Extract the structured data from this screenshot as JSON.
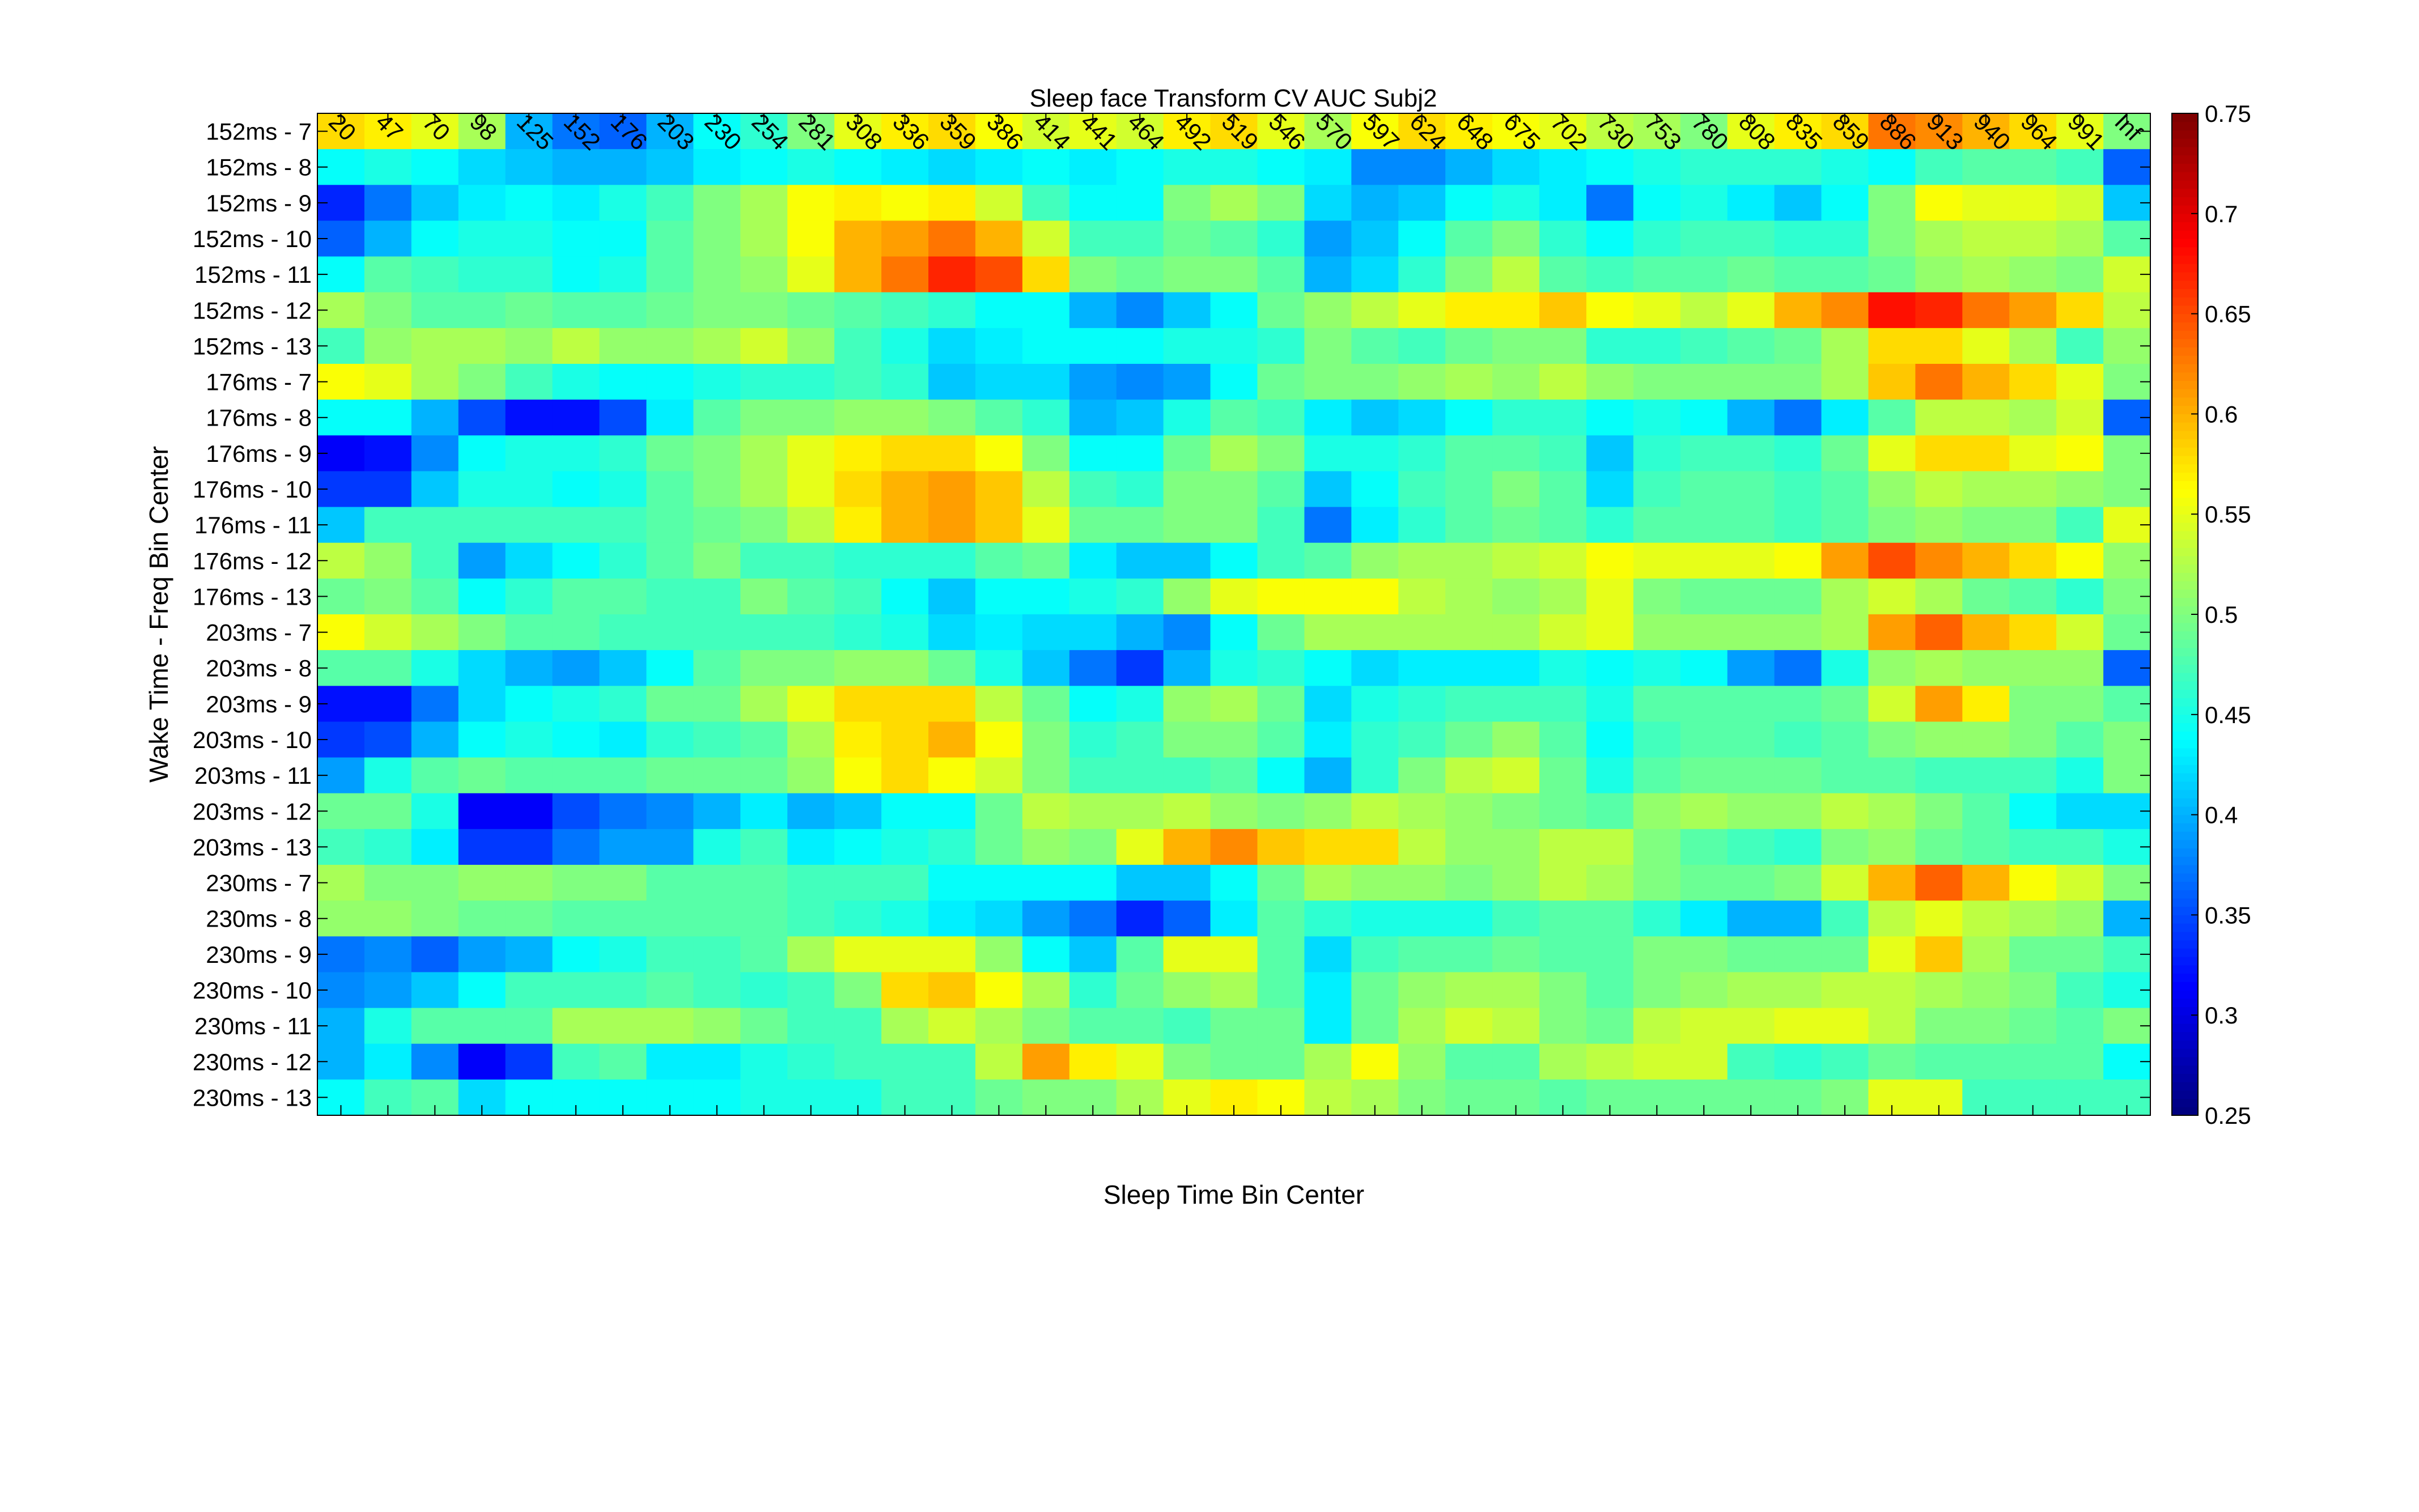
{
  "chart_data": {
    "type": "heatmap",
    "title": "Sleep face Transform CV AUC Subj2",
    "xlabel": "Sleep Time Bin Center",
    "ylabel": "Wake Time - Freq Bin Center",
    "x_ticks": [
      "20",
      "47",
      "70",
      "98",
      "125",
      "152",
      "176",
      "203",
      "230",
      "254",
      "281",
      "308",
      "336",
      "359",
      "386",
      "414",
      "441",
      "464",
      "492",
      "519",
      "546",
      "570",
      "597",
      "624",
      "648",
      "675",
      "702",
      "730",
      "753",
      "780",
      "808",
      "835",
      "859",
      "886",
      "913",
      "940",
      "964",
      "991",
      "Inf"
    ],
    "y_ticks": [
      "152ms - 7",
      "152ms - 8",
      "152ms - 9",
      "152ms - 10",
      "152ms - 11",
      "152ms - 12",
      "152ms - 13",
      "176ms - 7",
      "176ms - 8",
      "176ms - 9",
      "176ms - 10",
      "176ms - 11",
      "176ms - 12",
      "176ms - 13",
      "203ms - 7",
      "203ms - 8",
      "203ms - 9",
      "203ms - 10",
      "203ms - 11",
      "203ms - 12",
      "203ms - 13",
      "230ms - 7",
      "230ms - 8",
      "230ms - 9",
      "230ms - 10",
      "230ms - 11",
      "230ms - 12",
      "230ms - 13"
    ],
    "colormap": "jet",
    "clim": [
      0.25,
      0.75
    ],
    "colorbar_ticks": [
      "0.25",
      "0.3",
      "0.35",
      "0.4",
      "0.45",
      "0.5",
      "0.55",
      "0.6",
      "0.65",
      "0.7",
      "0.75"
    ],
    "values": [
      [
        0.58,
        0.57,
        0.55,
        0.52,
        0.4,
        0.37,
        0.36,
        0.4,
        0.44,
        0.46,
        0.5,
        0.55,
        0.57,
        0.58,
        0.56,
        0.54,
        0.55,
        0.54,
        0.57,
        0.58,
        0.55,
        0.52,
        0.56,
        0.58,
        0.57,
        0.56,
        0.55,
        0.53,
        0.52,
        0.5,
        0.55,
        0.57,
        0.58,
        0.63,
        0.62,
        0.6,
        0.58,
        0.55,
        0.5
      ],
      [
        0.44,
        0.45,
        0.44,
        0.42,
        0.41,
        0.4,
        0.4,
        0.41,
        0.43,
        0.44,
        0.45,
        0.44,
        0.43,
        0.42,
        0.43,
        0.44,
        0.43,
        0.44,
        0.45,
        0.45,
        0.44,
        0.43,
        0.38,
        0.38,
        0.4,
        0.42,
        0.43,
        0.44,
        0.45,
        0.46,
        0.46,
        0.46,
        0.45,
        0.44,
        0.47,
        0.48,
        0.48,
        0.47,
        0.36
      ],
      [
        0.33,
        0.37,
        0.41,
        0.43,
        0.44,
        0.43,
        0.45,
        0.47,
        0.5,
        0.52,
        0.56,
        0.57,
        0.56,
        0.57,
        0.54,
        0.47,
        0.44,
        0.44,
        0.5,
        0.52,
        0.5,
        0.42,
        0.4,
        0.41,
        0.44,
        0.45,
        0.43,
        0.37,
        0.44,
        0.45,
        0.43,
        0.41,
        0.44,
        0.5,
        0.56,
        0.55,
        0.55,
        0.54,
        0.41
      ],
      [
        0.36,
        0.4,
        0.44,
        0.45,
        0.45,
        0.44,
        0.44,
        0.48,
        0.5,
        0.52,
        0.56,
        0.6,
        0.61,
        0.63,
        0.6,
        0.54,
        0.47,
        0.47,
        0.49,
        0.48,
        0.46,
        0.39,
        0.41,
        0.44,
        0.48,
        0.5,
        0.46,
        0.44,
        0.46,
        0.47,
        0.47,
        0.46,
        0.46,
        0.5,
        0.52,
        0.53,
        0.53,
        0.52,
        0.48
      ],
      [
        0.44,
        0.48,
        0.47,
        0.46,
        0.46,
        0.44,
        0.45,
        0.48,
        0.5,
        0.51,
        0.55,
        0.6,
        0.63,
        0.67,
        0.65,
        0.58,
        0.5,
        0.49,
        0.5,
        0.5,
        0.48,
        0.4,
        0.42,
        0.46,
        0.5,
        0.53,
        0.48,
        0.47,
        0.48,
        0.48,
        0.49,
        0.48,
        0.48,
        0.49,
        0.51,
        0.52,
        0.51,
        0.5,
        0.54
      ],
      [
        0.52,
        0.5,
        0.48,
        0.48,
        0.49,
        0.48,
        0.48,
        0.49,
        0.5,
        0.5,
        0.49,
        0.48,
        0.47,
        0.46,
        0.44,
        0.44,
        0.4,
        0.38,
        0.41,
        0.44,
        0.49,
        0.51,
        0.53,
        0.55,
        0.57,
        0.57,
        0.59,
        0.56,
        0.55,
        0.53,
        0.55,
        0.6,
        0.62,
        0.68,
        0.67,
        0.63,
        0.61,
        0.58,
        0.53
      ],
      [
        0.47,
        0.51,
        0.52,
        0.52,
        0.51,
        0.53,
        0.51,
        0.51,
        0.52,
        0.54,
        0.51,
        0.47,
        0.45,
        0.42,
        0.43,
        0.44,
        0.44,
        0.44,
        0.45,
        0.45,
        0.46,
        0.5,
        0.48,
        0.47,
        0.49,
        0.5,
        0.5,
        0.46,
        0.46,
        0.47,
        0.48,
        0.49,
        0.52,
        0.58,
        0.58,
        0.55,
        0.52,
        0.47,
        0.51
      ],
      [
        0.56,
        0.55,
        0.52,
        0.5,
        0.47,
        0.45,
        0.44,
        0.44,
        0.45,
        0.46,
        0.46,
        0.47,
        0.46,
        0.41,
        0.42,
        0.42,
        0.39,
        0.38,
        0.39,
        0.44,
        0.49,
        0.5,
        0.5,
        0.51,
        0.52,
        0.51,
        0.53,
        0.51,
        0.5,
        0.5,
        0.5,
        0.5,
        0.52,
        0.59,
        0.63,
        0.6,
        0.58,
        0.55,
        0.5
      ],
      [
        0.44,
        0.44,
        0.4,
        0.35,
        0.32,
        0.32,
        0.35,
        0.43,
        0.48,
        0.5,
        0.5,
        0.51,
        0.51,
        0.5,
        0.48,
        0.46,
        0.4,
        0.41,
        0.45,
        0.48,
        0.47,
        0.43,
        0.41,
        0.42,
        0.44,
        0.46,
        0.46,
        0.44,
        0.45,
        0.44,
        0.4,
        0.37,
        0.43,
        0.48,
        0.53,
        0.53,
        0.52,
        0.54,
        0.36
      ],
      [
        0.31,
        0.32,
        0.38,
        0.44,
        0.45,
        0.45,
        0.46,
        0.49,
        0.5,
        0.52,
        0.55,
        0.57,
        0.58,
        0.58,
        0.56,
        0.5,
        0.44,
        0.44,
        0.49,
        0.52,
        0.5,
        0.45,
        0.45,
        0.46,
        0.48,
        0.48,
        0.47,
        0.41,
        0.46,
        0.47,
        0.47,
        0.46,
        0.49,
        0.55,
        0.58,
        0.58,
        0.55,
        0.56,
        0.5
      ],
      [
        0.34,
        0.34,
        0.41,
        0.45,
        0.45,
        0.44,
        0.45,
        0.48,
        0.5,
        0.52,
        0.55,
        0.58,
        0.6,
        0.61,
        0.59,
        0.53,
        0.47,
        0.46,
        0.5,
        0.5,
        0.48,
        0.41,
        0.44,
        0.47,
        0.48,
        0.5,
        0.48,
        0.42,
        0.47,
        0.48,
        0.48,
        0.47,
        0.48,
        0.51,
        0.53,
        0.52,
        0.52,
        0.51,
        0.5
      ],
      [
        0.41,
        0.47,
        0.47,
        0.47,
        0.47,
        0.47,
        0.47,
        0.48,
        0.49,
        0.5,
        0.53,
        0.57,
        0.6,
        0.61,
        0.59,
        0.55,
        0.49,
        0.49,
        0.5,
        0.5,
        0.47,
        0.37,
        0.43,
        0.46,
        0.48,
        0.49,
        0.48,
        0.46,
        0.48,
        0.48,
        0.48,
        0.47,
        0.48,
        0.5,
        0.51,
        0.5,
        0.5,
        0.47,
        0.55
      ],
      [
        0.53,
        0.51,
        0.47,
        0.39,
        0.42,
        0.44,
        0.46,
        0.48,
        0.5,
        0.47,
        0.47,
        0.46,
        0.46,
        0.46,
        0.48,
        0.49,
        0.43,
        0.41,
        0.41,
        0.44,
        0.47,
        0.48,
        0.51,
        0.52,
        0.52,
        0.53,
        0.54,
        0.56,
        0.55,
        0.55,
        0.55,
        0.56,
        0.61,
        0.65,
        0.62,
        0.6,
        0.58,
        0.56,
        0.51
      ],
      [
        0.49,
        0.5,
        0.48,
        0.44,
        0.46,
        0.48,
        0.48,
        0.47,
        0.47,
        0.5,
        0.48,
        0.47,
        0.44,
        0.41,
        0.44,
        0.44,
        0.45,
        0.46,
        0.51,
        0.55,
        0.56,
        0.56,
        0.56,
        0.53,
        0.52,
        0.51,
        0.52,
        0.55,
        0.5,
        0.49,
        0.49,
        0.49,
        0.52,
        0.54,
        0.52,
        0.49,
        0.48,
        0.46,
        0.5
      ],
      [
        0.56,
        0.54,
        0.52,
        0.5,
        0.48,
        0.48,
        0.47,
        0.47,
        0.47,
        0.47,
        0.47,
        0.46,
        0.45,
        0.42,
        0.43,
        0.42,
        0.42,
        0.4,
        0.38,
        0.44,
        0.49,
        0.52,
        0.52,
        0.52,
        0.52,
        0.52,
        0.54,
        0.55,
        0.51,
        0.51,
        0.51,
        0.51,
        0.52,
        0.61,
        0.64,
        0.6,
        0.58,
        0.54,
        0.49
      ],
      [
        0.48,
        0.48,
        0.45,
        0.42,
        0.4,
        0.39,
        0.41,
        0.44,
        0.48,
        0.5,
        0.5,
        0.51,
        0.51,
        0.49,
        0.45,
        0.41,
        0.37,
        0.34,
        0.4,
        0.45,
        0.46,
        0.44,
        0.42,
        0.43,
        0.43,
        0.43,
        0.45,
        0.44,
        0.45,
        0.44,
        0.39,
        0.37,
        0.45,
        0.51,
        0.52,
        0.51,
        0.51,
        0.51,
        0.36
      ],
      [
        0.32,
        0.32,
        0.37,
        0.42,
        0.44,
        0.45,
        0.46,
        0.49,
        0.49,
        0.52,
        0.55,
        0.58,
        0.58,
        0.58,
        0.53,
        0.49,
        0.44,
        0.45,
        0.51,
        0.52,
        0.49,
        0.42,
        0.45,
        0.46,
        0.47,
        0.47,
        0.47,
        0.45,
        0.48,
        0.48,
        0.48,
        0.48,
        0.49,
        0.54,
        0.61,
        0.57,
        0.5,
        0.5,
        0.48
      ],
      [
        0.34,
        0.35,
        0.4,
        0.44,
        0.45,
        0.44,
        0.43,
        0.46,
        0.47,
        0.48,
        0.52,
        0.57,
        0.58,
        0.6,
        0.56,
        0.5,
        0.46,
        0.47,
        0.5,
        0.5,
        0.48,
        0.43,
        0.46,
        0.47,
        0.49,
        0.51,
        0.48,
        0.44,
        0.47,
        0.48,
        0.48,
        0.47,
        0.48,
        0.5,
        0.51,
        0.51,
        0.5,
        0.48,
        0.5
      ],
      [
        0.39,
        0.45,
        0.48,
        0.49,
        0.48,
        0.48,
        0.48,
        0.49,
        0.49,
        0.49,
        0.51,
        0.56,
        0.58,
        0.56,
        0.54,
        0.5,
        0.47,
        0.47,
        0.47,
        0.48,
        0.44,
        0.4,
        0.46,
        0.5,
        0.53,
        0.54,
        0.49,
        0.45,
        0.48,
        0.49,
        0.49,
        0.49,
        0.48,
        0.48,
        0.47,
        0.47,
        0.47,
        0.45,
        0.5
      ],
      [
        0.49,
        0.49,
        0.45,
        0.31,
        0.31,
        0.35,
        0.37,
        0.38,
        0.4,
        0.43,
        0.4,
        0.41,
        0.44,
        0.44,
        0.49,
        0.53,
        0.52,
        0.52,
        0.53,
        0.51,
        0.5,
        0.51,
        0.53,
        0.52,
        0.51,
        0.5,
        0.49,
        0.48,
        0.51,
        0.52,
        0.51,
        0.51,
        0.53,
        0.52,
        0.5,
        0.48,
        0.44,
        0.42,
        0.42
      ],
      [
        0.47,
        0.46,
        0.43,
        0.34,
        0.34,
        0.37,
        0.39,
        0.39,
        0.45,
        0.47,
        0.43,
        0.44,
        0.45,
        0.46,
        0.49,
        0.51,
        0.5,
        0.55,
        0.6,
        0.62,
        0.59,
        0.58,
        0.58,
        0.53,
        0.51,
        0.51,
        0.53,
        0.53,
        0.5,
        0.48,
        0.47,
        0.46,
        0.5,
        0.51,
        0.49,
        0.48,
        0.47,
        0.47,
        0.45
      ],
      [
        0.52,
        0.5,
        0.5,
        0.51,
        0.51,
        0.5,
        0.5,
        0.48,
        0.48,
        0.48,
        0.47,
        0.47,
        0.47,
        0.44,
        0.44,
        0.44,
        0.44,
        0.41,
        0.41,
        0.44,
        0.49,
        0.52,
        0.51,
        0.51,
        0.5,
        0.51,
        0.53,
        0.52,
        0.5,
        0.49,
        0.49,
        0.5,
        0.54,
        0.6,
        0.64,
        0.6,
        0.56,
        0.54,
        0.5
      ],
      [
        0.51,
        0.51,
        0.5,
        0.49,
        0.49,
        0.48,
        0.48,
        0.48,
        0.48,
        0.48,
        0.47,
        0.46,
        0.45,
        0.43,
        0.42,
        0.39,
        0.37,
        0.33,
        0.36,
        0.43,
        0.48,
        0.46,
        0.45,
        0.45,
        0.45,
        0.47,
        0.48,
        0.48,
        0.46,
        0.43,
        0.4,
        0.4,
        0.47,
        0.53,
        0.55,
        0.53,
        0.52,
        0.51,
        0.4
      ],
      [
        0.37,
        0.38,
        0.36,
        0.39,
        0.4,
        0.44,
        0.45,
        0.47,
        0.47,
        0.48,
        0.52,
        0.55,
        0.55,
        0.55,
        0.51,
        0.44,
        0.41,
        0.48,
        0.55,
        0.55,
        0.48,
        0.42,
        0.47,
        0.48,
        0.48,
        0.49,
        0.48,
        0.48,
        0.5,
        0.5,
        0.49,
        0.49,
        0.49,
        0.55,
        0.59,
        0.52,
        0.49,
        0.49,
        0.47
      ],
      [
        0.38,
        0.39,
        0.41,
        0.44,
        0.47,
        0.47,
        0.47,
        0.48,
        0.47,
        0.46,
        0.47,
        0.5,
        0.58,
        0.59,
        0.56,
        0.52,
        0.46,
        0.49,
        0.51,
        0.52,
        0.48,
        0.43,
        0.49,
        0.51,
        0.52,
        0.52,
        0.5,
        0.48,
        0.5,
        0.51,
        0.52,
        0.52,
        0.53,
        0.53,
        0.52,
        0.51,
        0.5,
        0.47,
        0.45
      ],
      [
        0.4,
        0.45,
        0.48,
        0.48,
        0.48,
        0.52,
        0.52,
        0.52,
        0.51,
        0.49,
        0.47,
        0.47,
        0.52,
        0.54,
        0.52,
        0.5,
        0.48,
        0.48,
        0.47,
        0.49,
        0.49,
        0.43,
        0.49,
        0.52,
        0.54,
        0.53,
        0.5,
        0.49,
        0.53,
        0.54,
        0.54,
        0.55,
        0.55,
        0.53,
        0.5,
        0.5,
        0.49,
        0.48,
        0.5
      ],
      [
        0.4,
        0.43,
        0.38,
        0.31,
        0.34,
        0.47,
        0.48,
        0.43,
        0.43,
        0.45,
        0.46,
        0.47,
        0.47,
        0.47,
        0.53,
        0.61,
        0.57,
        0.55,
        0.5,
        0.49,
        0.49,
        0.52,
        0.56,
        0.51,
        0.48,
        0.48,
        0.52,
        0.53,
        0.54,
        0.54,
        0.47,
        0.46,
        0.47,
        0.49,
        0.48,
        0.48,
        0.48,
        0.48,
        0.44
      ],
      [
        0.44,
        0.47,
        0.48,
        0.42,
        0.44,
        0.44,
        0.44,
        0.44,
        0.44,
        0.45,
        0.45,
        0.45,
        0.47,
        0.47,
        0.49,
        0.5,
        0.5,
        0.52,
        0.55,
        0.57,
        0.56,
        0.53,
        0.52,
        0.5,
        0.49,
        0.49,
        0.48,
        0.49,
        0.49,
        0.49,
        0.49,
        0.49,
        0.5,
        0.55,
        0.55,
        0.47,
        0.47,
        0.47,
        0.47
      ]
    ]
  }
}
